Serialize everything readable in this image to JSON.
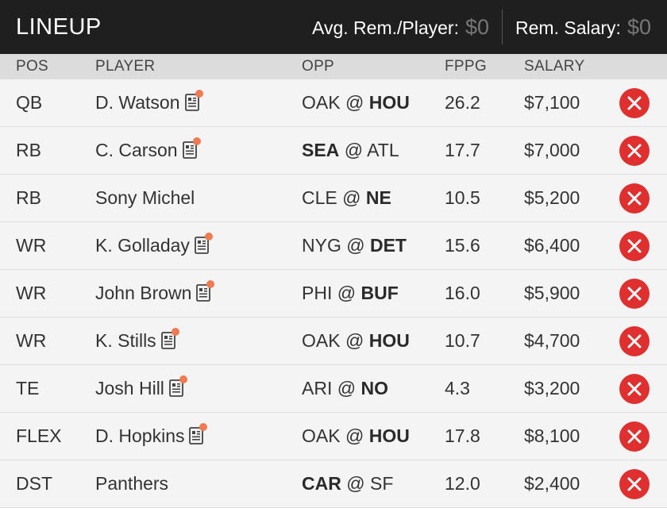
{
  "header": {
    "title": "LINEUP",
    "avg_rem_label": "Avg. Rem./Player:",
    "avg_rem_value": "$0",
    "rem_salary_label": "Rem. Salary:",
    "rem_salary_value": "$0"
  },
  "columns": {
    "pos": "POS",
    "player": "PLAYER",
    "opp": "OPP",
    "fppg": "FPPG",
    "salary": "SALARY"
  },
  "rows": [
    {
      "pos": "QB",
      "player": "D. Watson",
      "news": true,
      "away": "OAK",
      "at": "@",
      "home": "HOU",
      "bold": "home",
      "fppg": "26.2",
      "salary": "$7,100"
    },
    {
      "pos": "RB",
      "player": "C. Carson",
      "news": true,
      "away": "SEA",
      "at": "@",
      "home": "ATL",
      "bold": "away",
      "fppg": "17.7",
      "salary": "$7,000"
    },
    {
      "pos": "RB",
      "player": "Sony Michel",
      "news": false,
      "away": "CLE",
      "at": "@",
      "home": "NE",
      "bold": "home",
      "fppg": "10.5",
      "salary": "$5,200"
    },
    {
      "pos": "WR",
      "player": "K. Golladay",
      "news": true,
      "away": "NYG",
      "at": "@",
      "home": "DET",
      "bold": "home",
      "fppg": "15.6",
      "salary": "$6,400"
    },
    {
      "pos": "WR",
      "player": "John Brown",
      "news": true,
      "away": "PHI",
      "at": "@",
      "home": "BUF",
      "bold": "home",
      "fppg": "16.0",
      "salary": "$5,900"
    },
    {
      "pos": "WR",
      "player": "K. Stills",
      "news": true,
      "away": "OAK",
      "at": "@",
      "home": "HOU",
      "bold": "home",
      "fppg": "10.7",
      "salary": "$4,700"
    },
    {
      "pos": "TE",
      "player": "Josh Hill",
      "news": true,
      "away": "ARI",
      "at": "@",
      "home": "NO",
      "bold": "home",
      "fppg": "4.3",
      "salary": "$3,200"
    },
    {
      "pos": "FLEX",
      "player": "D. Hopkins",
      "news": true,
      "away": "OAK",
      "at": "@",
      "home": "HOU",
      "bold": "home",
      "fppg": "17.8",
      "salary": "$8,100"
    },
    {
      "pos": "DST",
      "player": "Panthers",
      "news": false,
      "away": "CAR",
      "at": "@",
      "home": "SF",
      "bold": "away",
      "fppg": "12.0",
      "salary": "$2,400"
    }
  ],
  "icons": {
    "news": "news-icon",
    "remove": "close-icon"
  },
  "colors": {
    "header_bg": "#1f1f1f",
    "remove_red": "#e02f2f",
    "news_dot": "#f07a52"
  }
}
